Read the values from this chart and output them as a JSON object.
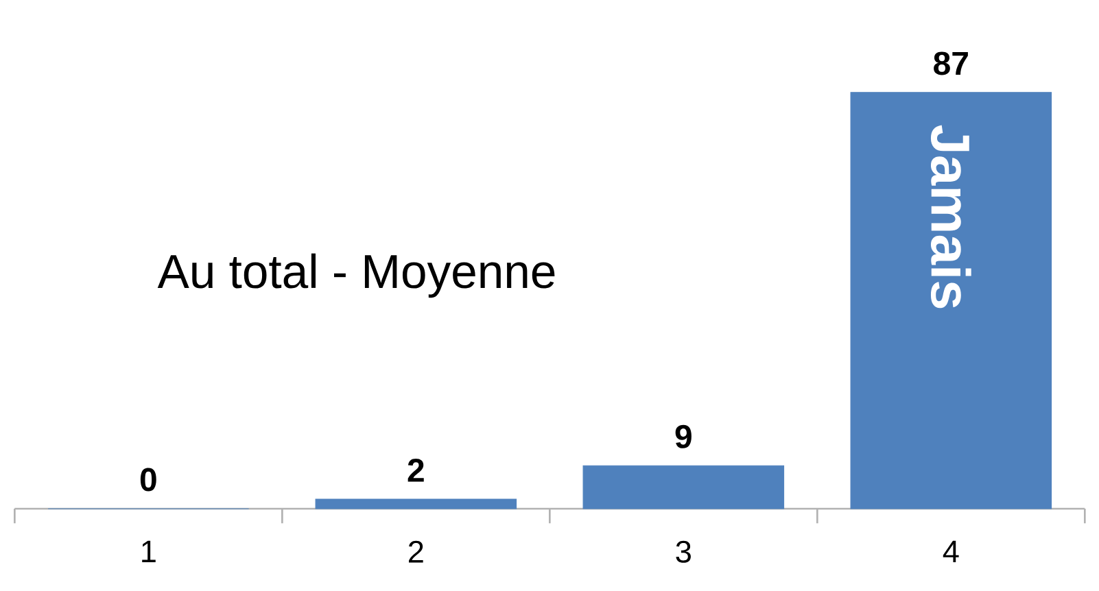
{
  "chart_data": {
    "type": "bar",
    "title": "Au total - Moyenne",
    "categories": [
      "1",
      "2",
      "3",
      "4"
    ],
    "values": [
      0,
      2,
      9,
      87
    ],
    "color": "#4f81bd",
    "data_labels": true,
    "annotations": [
      "Jamais"
    ]
  }
}
